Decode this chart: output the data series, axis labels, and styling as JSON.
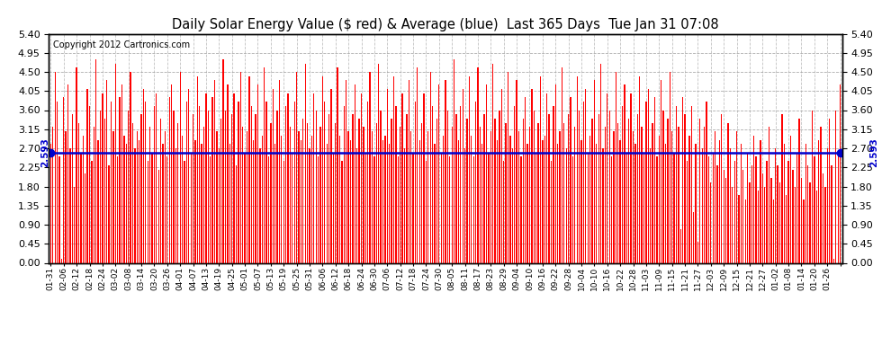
{
  "title": "Daily Solar Energy Value ($ red) & Average (blue)  Last 365 Days  Tue Jan 31 07:08",
  "copyright": "Copyright 2012 Cartronics.com",
  "average": 2.593,
  "ylim": [
    0,
    5.4
  ],
  "yticks": [
    0.0,
    0.45,
    0.9,
    1.35,
    1.8,
    2.25,
    2.7,
    3.15,
    3.6,
    4.05,
    4.5,
    4.95,
    5.4
  ],
  "bar_color": "#ff0000",
  "avg_line_color": "#0000cc",
  "background_color": "#ffffff",
  "grid_color": "#999999",
  "x_labels": [
    "01-31",
    "02-06",
    "02-12",
    "02-18",
    "02-24",
    "03-02",
    "03-08",
    "03-14",
    "03-20",
    "03-26",
    "04-01",
    "04-07",
    "04-13",
    "04-19",
    "04-25",
    "05-01",
    "05-07",
    "05-13",
    "05-19",
    "05-25",
    "05-31",
    "06-06",
    "06-12",
    "06-18",
    "06-24",
    "06-30",
    "07-06",
    "07-12",
    "07-18",
    "07-24",
    "07-30",
    "08-05",
    "08-11",
    "08-17",
    "08-23",
    "08-29",
    "09-04",
    "09-10",
    "09-16",
    "09-22",
    "09-28",
    "10-04",
    "10-10",
    "10-16",
    "10-22",
    "10-28",
    "11-03",
    "11-09",
    "11-15",
    "11-21",
    "11-27",
    "12-03",
    "12-09",
    "12-15",
    "12-21",
    "12-27",
    "01-02",
    "01-08",
    "01-14",
    "01-20",
    "01-26"
  ],
  "values": [
    2.8,
    3.2,
    4.5,
    3.8,
    2.5,
    0.1,
    3.9,
    3.1,
    4.2,
    2.7,
    3.5,
    1.8,
    4.6,
    3.3,
    2.6,
    3.0,
    2.1,
    4.1,
    3.7,
    2.4,
    3.2,
    4.8,
    2.9,
    3.6,
    4.0,
    3.4,
    4.3,
    2.3,
    3.8,
    3.1,
    4.7,
    2.5,
    3.9,
    4.2,
    3.0,
    2.8,
    3.6,
    4.5,
    3.3,
    2.7,
    3.1,
    2.9,
    3.5,
    4.1,
    3.8,
    2.4,
    3.2,
    2.6,
    3.7,
    4.0,
    2.2,
    3.4,
    2.8,
    3.1,
    2.5,
    3.9,
    4.2,
    3.6,
    2.7,
    3.3,
    4.5,
    3.0,
    2.4,
    3.8,
    4.1,
    2.6,
    3.5,
    2.9,
    4.4,
    3.7,
    2.8,
    3.2,
    4.0,
    3.6,
    2.5,
    3.9,
    4.3,
    3.1,
    2.7,
    3.4,
    4.8,
    3.6,
    4.2,
    2.8,
    3.5,
    4.0,
    2.3,
    3.8,
    4.5,
    3.2,
    2.6,
    3.1,
    4.4,
    3.7,
    2.9,
    3.5,
    4.2,
    2.7,
    3.0,
    4.6,
    3.8,
    2.5,
    3.3,
    4.1,
    2.8,
    3.6,
    4.3,
    3.0,
    2.4,
    3.7,
    4.0,
    3.2,
    2.6,
    3.8,
    4.5,
    3.1,
    2.9,
    3.4,
    4.7,
    3.3,
    2.7,
    3.0,
    4.0,
    3.6,
    2.5,
    3.2,
    4.4,
    3.8,
    2.8,
    3.5,
    4.1,
    2.6,
    3.3,
    4.6,
    3.0,
    2.4,
    3.7,
    4.3,
    3.1,
    2.9,
    3.5,
    4.2,
    2.7,
    3.4,
    4.0,
    3.2,
    2.6,
    3.8,
    4.5,
    3.1,
    2.5,
    3.3,
    4.7,
    3.6,
    2.9,
    3.0,
    4.1,
    2.8,
    3.4,
    4.4,
    3.7,
    2.5,
    3.2,
    4.0,
    2.7,
    3.5,
    4.3,
    3.1,
    2.6,
    3.8,
    4.6,
    2.9,
    3.3,
    4.0,
    2.4,
    3.1,
    4.5,
    3.7,
    2.8,
    3.4,
    4.2,
    2.6,
    3.0,
    4.3,
    3.6,
    2.5,
    3.2,
    4.8,
    3.5,
    2.9,
    3.7,
    4.1,
    2.7,
    3.4,
    4.4,
    3.0,
    2.5,
    3.8,
    4.6,
    3.2,
    2.8,
    3.5,
    4.2,
    2.6,
    3.1,
    4.7,
    3.4,
    2.9,
    3.6,
    4.1,
    2.4,
    3.3,
    4.5,
    3.0,
    2.7,
    3.7,
    4.3,
    3.1,
    2.5,
    3.4,
    3.9,
    2.8,
    3.2,
    4.1,
    3.6,
    2.6,
    3.3,
    4.4,
    2.9,
    3.0,
    4.0,
    3.5,
    2.4,
    3.7,
    4.2,
    2.8,
    3.1,
    4.6,
    3.3,
    2.7,
    3.5,
    3.9,
    2.5,
    3.2,
    4.4,
    3.6,
    2.9,
    3.8,
    4.1,
    2.6,
    3.0,
    3.4,
    4.3,
    2.8,
    3.5,
    4.7,
    2.7,
    3.2,
    4.0,
    3.6,
    2.5,
    3.1,
    4.5,
    3.3,
    2.9,
    3.7,
    4.2,
    2.6,
    3.4,
    4.0,
    3.1,
    2.8,
    3.5,
    4.4,
    3.2,
    2.6,
    3.8,
    4.1,
    2.7,
    3.3,
    3.9,
    2.5,
    3.0,
    4.3,
    3.6,
    2.8,
    3.4,
    4.5,
    3.1,
    2.6,
    3.7,
    3.2,
    0.8,
    3.9,
    3.5,
    2.4,
    3.0,
    3.7,
    1.2,
    2.8,
    0.5,
    3.4,
    2.7,
    3.2,
    3.8,
    2.5,
    1.9,
    2.6,
    3.1,
    2.3,
    2.9,
    3.5,
    2.2,
    2.0,
    3.3,
    2.7,
    1.8,
    2.4,
    3.1,
    1.6,
    2.8,
    2.2,
    1.5,
    2.6,
    1.9,
    2.3,
    3.0,
    2.5,
    1.7,
    2.9,
    2.1,
    1.8,
    2.4,
    3.2,
    2.0,
    1.5,
    2.7,
    2.3,
    1.9,
    3.5,
    2.8,
    1.6,
    2.4,
    3.0,
    2.2,
    1.8,
    2.6,
    3.4,
    2.0,
    1.5,
    2.8,
    2.3,
    1.9,
    3.6,
    2.5,
    1.7,
    2.9,
    3.2,
    2.1,
    1.8,
    2.7,
    3.4,
    2.3,
    0.1,
    3.6,
    2.5,
    4.2
  ]
}
